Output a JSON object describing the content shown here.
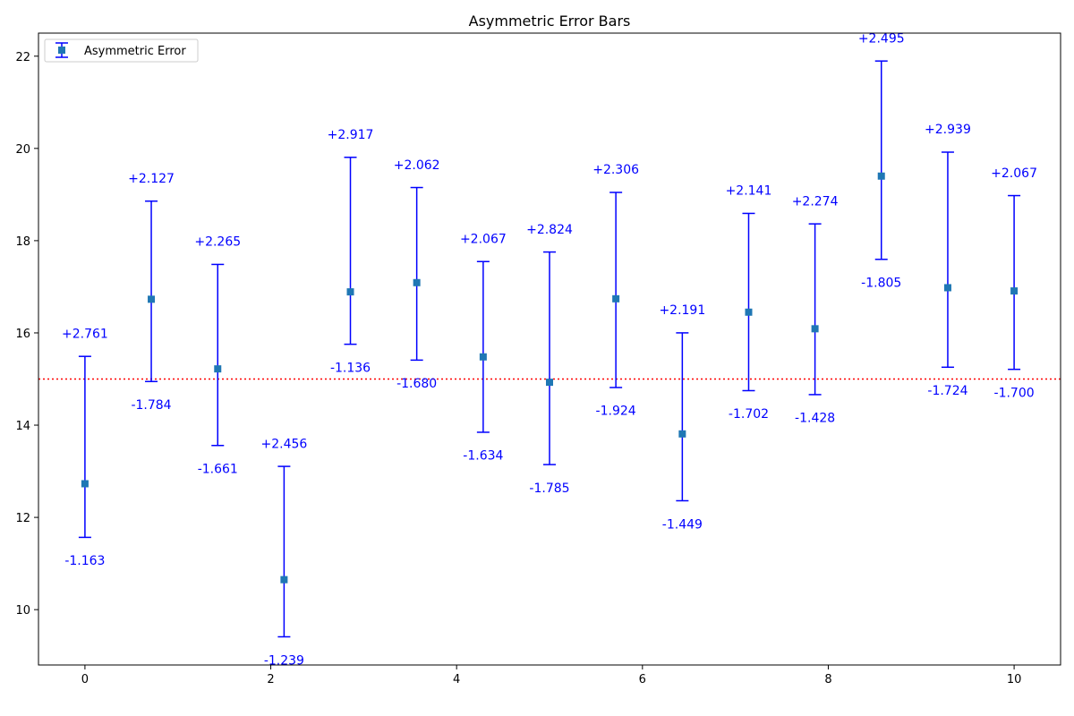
{
  "chart_data": {
    "type": "scatter",
    "title": "Asymmetric Error Bars",
    "xlabel": "",
    "ylabel": "",
    "xlim": [
      -0.5,
      10.5
    ],
    "ylim": [
      8.8,
      22.5
    ],
    "xticks": [
      0,
      2,
      4,
      6,
      8,
      10
    ],
    "yticks": [
      10,
      12,
      14,
      16,
      18,
      20,
      22
    ],
    "grid": false,
    "legend_position": "top-left",
    "reference_line": {
      "y": 15,
      "style": "dotted",
      "color": "#ff0000"
    },
    "series": [
      {
        "name": "Asymmetric Error",
        "marker": "square",
        "marker_color": "#1f77b4",
        "errorbar_color": "#0000ff",
        "points": [
          {
            "x": 0.0,
            "y": 12.73,
            "err_plus": 2.761,
            "err_minus": 1.163
          },
          {
            "x": 0.714,
            "y": 16.73,
            "err_plus": 2.127,
            "err_minus": 1.784
          },
          {
            "x": 1.429,
            "y": 15.22,
            "err_plus": 2.265,
            "err_minus": 1.661
          },
          {
            "x": 2.143,
            "y": 10.65,
            "err_plus": 2.456,
            "err_minus": 1.239
          },
          {
            "x": 2.857,
            "y": 16.89,
            "err_plus": 2.917,
            "err_minus": 1.136
          },
          {
            "x": 3.571,
            "y": 17.09,
            "err_plus": 2.062,
            "err_minus": 1.68
          },
          {
            "x": 4.286,
            "y": 15.48,
            "err_plus": 2.067,
            "err_minus": 1.634
          },
          {
            "x": 5.0,
            "y": 14.93,
            "err_plus": 2.824,
            "err_minus": 1.785
          },
          {
            "x": 5.714,
            "y": 16.74,
            "err_plus": 2.306,
            "err_minus": 1.924
          },
          {
            "x": 6.429,
            "y": 13.81,
            "err_plus": 2.191,
            "err_minus": 1.449
          },
          {
            "x": 7.143,
            "y": 16.45,
            "err_plus": 2.141,
            "err_minus": 1.702
          },
          {
            "x": 7.857,
            "y": 16.09,
            "err_plus": 2.274,
            "err_minus": 1.428
          },
          {
            "x": 8.571,
            "y": 19.4,
            "err_plus": 2.495,
            "err_minus": 1.805
          },
          {
            "x": 9.286,
            "y": 16.98,
            "err_plus": 2.939,
            "err_minus": 1.724
          },
          {
            "x": 10.0,
            "y": 16.91,
            "err_plus": 2.067,
            "err_minus": 1.7
          }
        ]
      }
    ],
    "annotations": {
      "color": "#0000ff",
      "plus_labels": [
        "+2.761",
        "+2.127",
        "+2.265",
        "+2.456",
        "+2.917",
        "+2.062",
        "+2.067",
        "+2.824",
        "+2.306",
        "+2.191",
        "+2.141",
        "+2.274",
        "+2.495",
        "+2.939",
        "+2.067"
      ],
      "minus_labels": [
        "-1.163",
        "-1.784",
        "-1.661",
        "-1.239",
        "-1.136",
        "-1.680",
        "-1.634",
        "-1.785",
        "-1.924",
        "-1.449",
        "-1.702",
        "-1.428",
        "-1.805",
        "-1.724",
        "-1.700"
      ]
    }
  }
}
